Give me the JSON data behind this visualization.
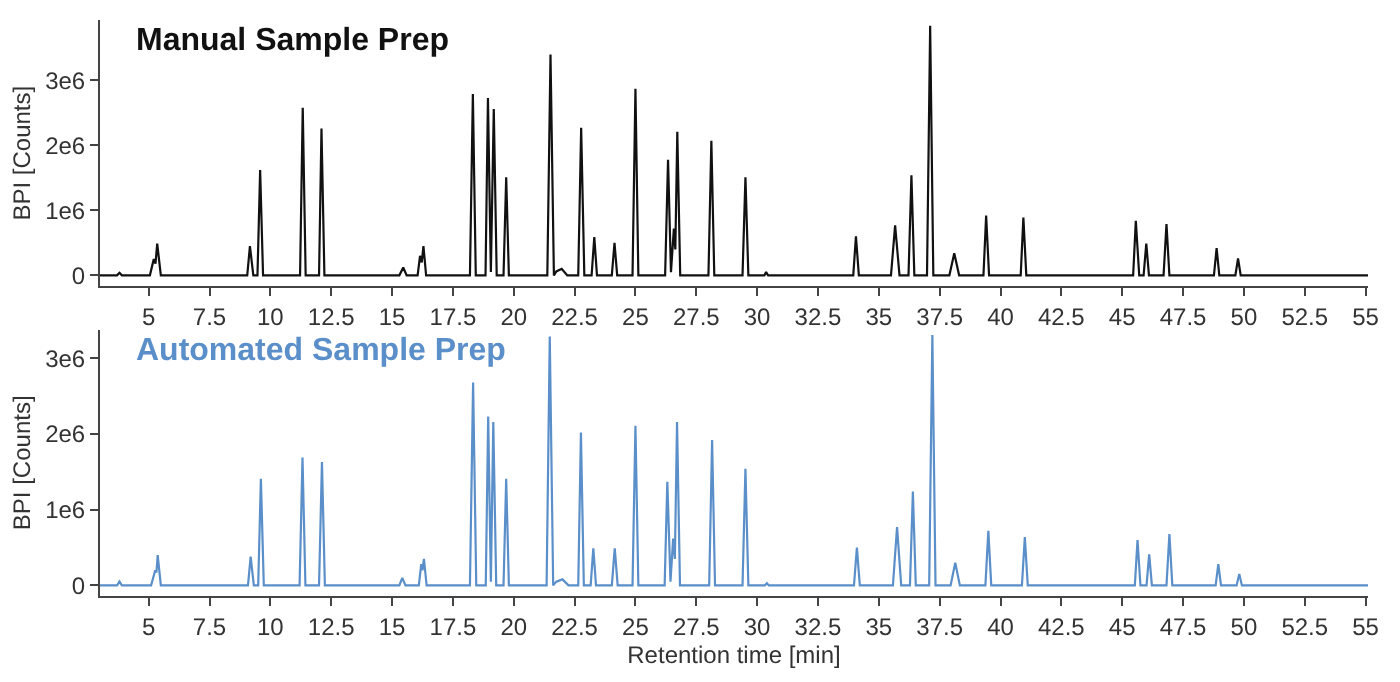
{
  "chart_data": [
    {
      "type": "line",
      "title": "Manual Sample Prep",
      "ylabel": "BPI [Counts]",
      "marker": "none",
      "line_style": "solid",
      "x": [
        3,
        3.7,
        3.8,
        3.9,
        5.05,
        5.21,
        5.28,
        5.35,
        5.5,
        9.05,
        9.16,
        9.3,
        9.47,
        9.58,
        9.7,
        11.22,
        11.33,
        11.45,
        12.0,
        12.1,
        12.22,
        15.3,
        15.46,
        15.6,
        16.05,
        16.15,
        16.22,
        16.29,
        16.4,
        18.2,
        18.32,
        18.44,
        18.84,
        18.94,
        19.06,
        19.18,
        19.3,
        19.58,
        19.69,
        19.8,
        21.38,
        21.51,
        21.65,
        21.75,
        21.97,
        22.2,
        22.65,
        22.77,
        22.9,
        23.2,
        23.31,
        23.42,
        24.03,
        24.14,
        24.25,
        24.88,
        25.0,
        25.12,
        26.22,
        26.34,
        26.46,
        26.58,
        26.64,
        26.72,
        26.84,
        28.0,
        28.12,
        28.24,
        29.4,
        29.52,
        29.64,
        30.3,
        30.37,
        30.45,
        33.95,
        34.06,
        34.18,
        35.5,
        35.67,
        35.85,
        36.22,
        36.34,
        36.46,
        36.98,
        37.11,
        37.24,
        37.9,
        38.1,
        38.3,
        39.3,
        39.41,
        39.53,
        40.83,
        40.94,
        41.06,
        45.45,
        45.56,
        45.7,
        45.88,
        45.99,
        46.1,
        46.7,
        46.82,
        46.94,
        48.77,
        48.88,
        48.99,
        49.65,
        49.76,
        49.87,
        55.1
      ],
      "series": [
        {
          "color": "#111111",
          "values": [
            0,
            0,
            40000,
            0,
            0,
            250000,
            180000,
            490000,
            0,
            0,
            450000,
            0,
            0,
            1620000,
            0,
            0,
            2580000,
            0,
            0,
            2260000,
            0,
            0,
            120000,
            0,
            0,
            300000,
            200000,
            450000,
            0,
            0,
            2790000,
            0,
            0,
            2730000,
            50000,
            2560000,
            0,
            0,
            1510000,
            0,
            0,
            3400000,
            0,
            60000,
            100000,
            0,
            0,
            2270000,
            0,
            0,
            590000,
            0,
            0,
            500000,
            0,
            0,
            2870000,
            0,
            0,
            1780000,
            50000,
            720000,
            400000,
            2210000,
            0,
            0,
            2070000,
            0,
            0,
            1510000,
            0,
            0,
            50000,
            0,
            0,
            600000,
            0,
            0,
            770000,
            0,
            0,
            1540000,
            0,
            0,
            3840000,
            0,
            0,
            340000,
            0,
            0,
            920000,
            0,
            0,
            890000,
            0,
            0,
            840000,
            0,
            0,
            490000,
            0,
            0,
            790000,
            0,
            0,
            420000,
            0,
            0,
            260000,
            0,
            0
          ]
        }
      ],
      "xlim": [
        3,
        55.1
      ],
      "xticks": [
        5,
        7.5,
        10,
        12.5,
        15,
        17.5,
        20,
        22.5,
        25,
        27.5,
        30,
        32.5,
        35,
        37.5,
        40,
        42.5,
        45,
        47.5,
        50,
        52.5,
        55
      ],
      "ylim": [
        -170000,
        3930000
      ],
      "yticks": [
        0,
        {
          "value": 1000000,
          "label": "1e6"
        },
        {
          "value": 2000000,
          "label": "2e6"
        },
        {
          "value": 3000000,
          "label": "3e6"
        }
      ]
    },
    {
      "type": "line",
      "title": "Automated Sample Prep",
      "ylabel": "BPI [Counts]",
      "xlabel": "Retention time [min]",
      "marker": "none",
      "line_style": "solid",
      "x": [
        3,
        3.7,
        3.8,
        3.9,
        5.1,
        5.27,
        5.32,
        5.37,
        5.5,
        9.08,
        9.19,
        9.32,
        9.5,
        9.61,
        9.73,
        11.2,
        11.32,
        11.44,
        12.0,
        12.12,
        12.24,
        15.3,
        15.42,
        15.55,
        16.1,
        16.2,
        16.25,
        16.31,
        16.42,
        18.2,
        18.33,
        18.46,
        18.85,
        18.95,
        19.06,
        19.16,
        19.28,
        19.58,
        19.69,
        19.8,
        21.35,
        21.48,
        21.62,
        21.75,
        22.0,
        22.25,
        22.65,
        22.76,
        22.88,
        23.16,
        23.27,
        23.38,
        24.03,
        24.15,
        24.27,
        24.88,
        25.0,
        25.12,
        26.2,
        26.31,
        26.44,
        26.55,
        26.62,
        26.71,
        26.83,
        28.03,
        28.15,
        28.27,
        29.4,
        29.52,
        29.64,
        30.32,
        30.4,
        30.48,
        33.98,
        34.1,
        34.22,
        35.58,
        35.75,
        35.92,
        36.28,
        36.4,
        36.52,
        37.07,
        37.2,
        37.33,
        37.95,
        38.14,
        38.33,
        39.38,
        39.5,
        39.62,
        40.88,
        41.0,
        41.12,
        45.52,
        45.63,
        45.75,
        46.0,
        46.11,
        46.22,
        46.82,
        46.94,
        47.06,
        48.84,
        48.95,
        49.06,
        49.7,
        49.81,
        49.92,
        55.1
      ],
      "series": [
        {
          "color": "#5b8fc9",
          "values": [
            0,
            0,
            50000,
            0,
            0,
            200000,
            170000,
            400000,
            0,
            0,
            380000,
            0,
            0,
            1410000,
            0,
            0,
            1690000,
            0,
            0,
            1630000,
            0,
            0,
            100000,
            0,
            0,
            280000,
            200000,
            350000,
            0,
            0,
            2680000,
            0,
            0,
            2230000,
            50000,
            2160000,
            0,
            0,
            1410000,
            0,
            0,
            3290000,
            0,
            50000,
            80000,
            0,
            0,
            2020000,
            0,
            0,
            490000,
            0,
            0,
            490000,
            0,
            0,
            2110000,
            0,
            0,
            1370000,
            50000,
            620000,
            350000,
            2160000,
            0,
            0,
            1920000,
            0,
            0,
            1540000,
            0,
            0,
            30000,
            0,
            0,
            500000,
            0,
            0,
            770000,
            0,
            0,
            1240000,
            0,
            0,
            3310000,
            0,
            0,
            300000,
            0,
            0,
            720000,
            0,
            0,
            640000,
            0,
            0,
            600000,
            0,
            0,
            410000,
            0,
            0,
            680000,
            0,
            0,
            280000,
            0,
            0,
            150000,
            0,
            0
          ]
        }
      ],
      "xlim": [
        3,
        55.1
      ],
      "xticks": [
        5,
        7.5,
        10,
        12.5,
        15,
        17.5,
        20,
        22.5,
        25,
        27.5,
        30,
        32.5,
        35,
        37.5,
        40,
        42.5,
        45,
        47.5,
        50,
        52.5,
        55
      ],
      "ylim": [
        -140000,
        3380000
      ],
      "yticks": [
        0,
        {
          "value": 1000000,
          "label": "1e6"
        },
        {
          "value": 2000000,
          "label": "2e6"
        },
        {
          "value": 3000000,
          "label": "3e6"
        }
      ]
    }
  ]
}
